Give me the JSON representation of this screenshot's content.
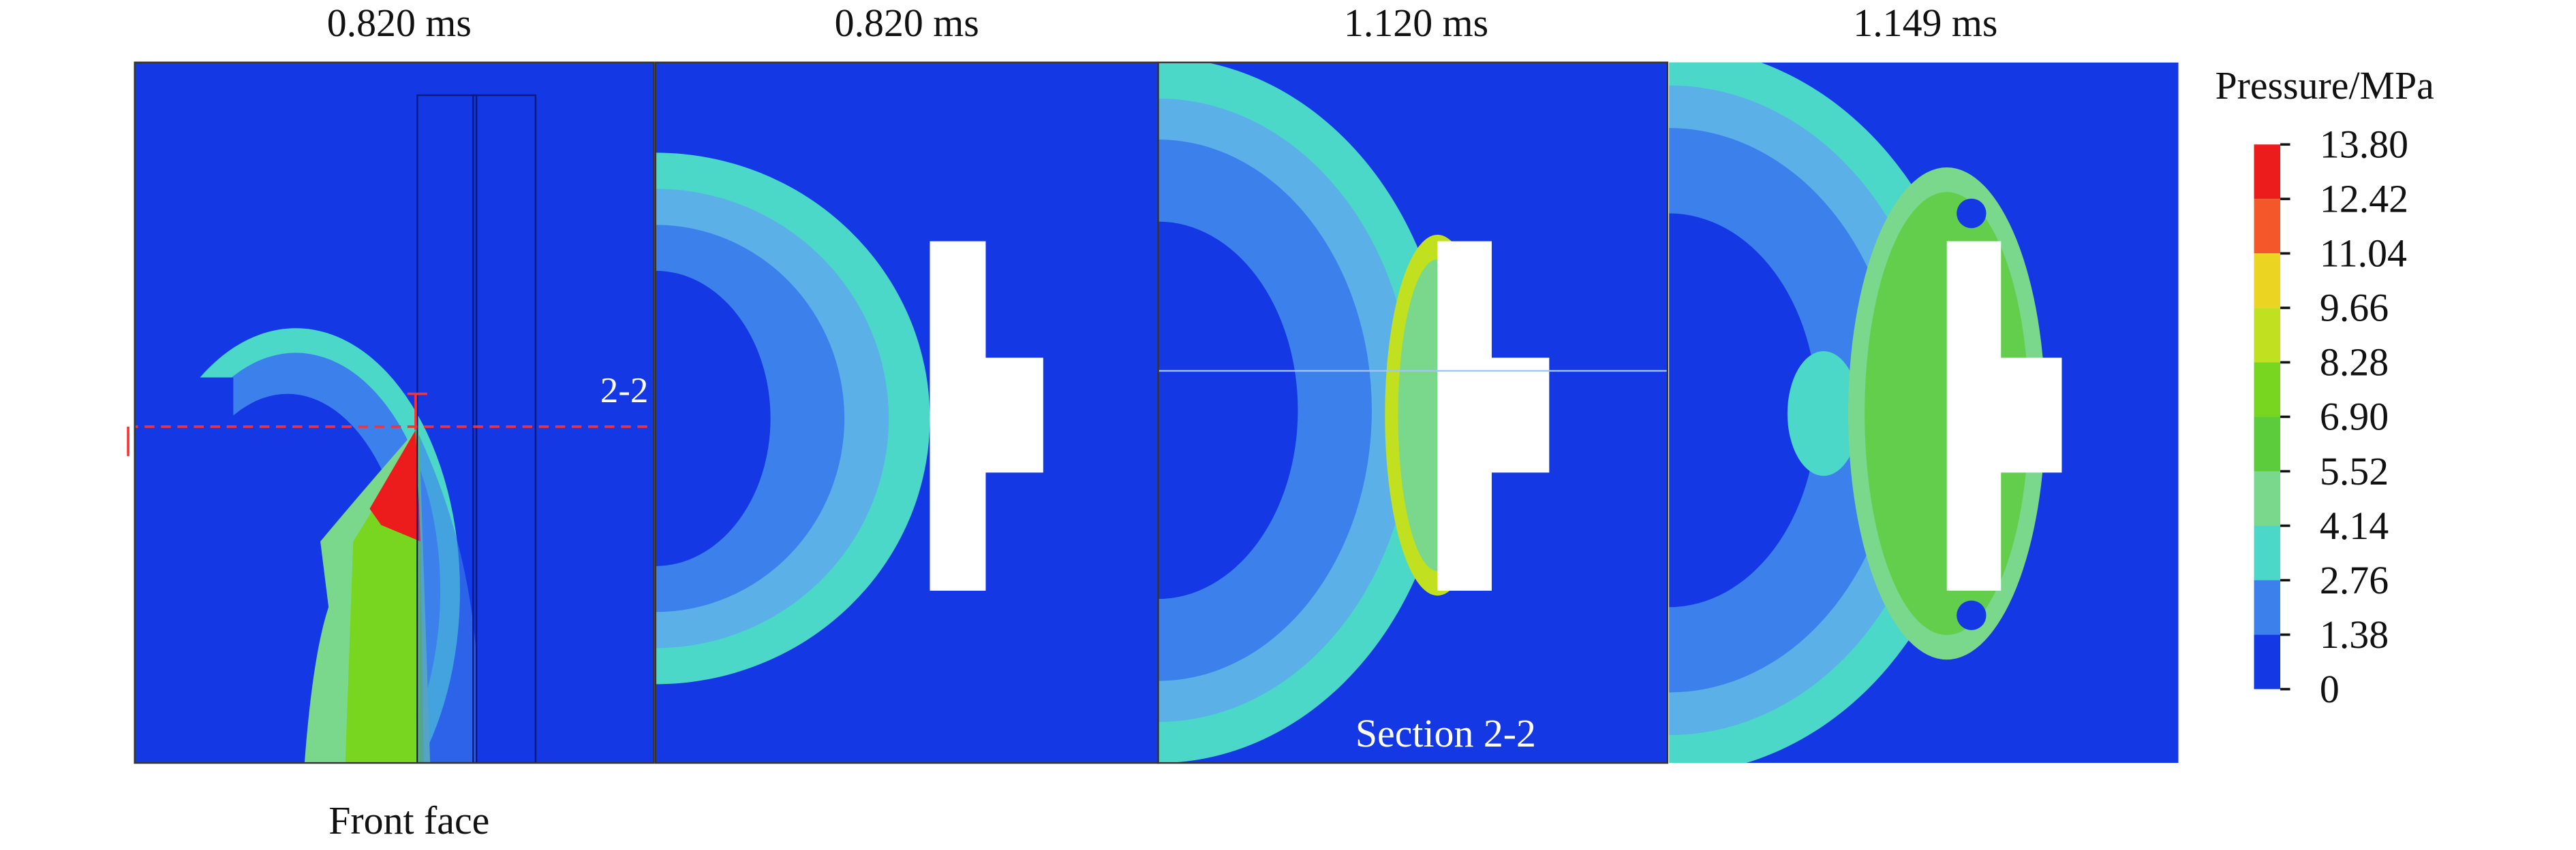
{
  "panels": [
    {
      "time": "0.820 ms",
      "caption": "Front face",
      "section_label": "2-2"
    },
    {
      "time": "0.820 ms"
    },
    {
      "time": "1.120 ms",
      "caption": "Section 2-2"
    },
    {
      "time": "1.149 ms"
    }
  ],
  "colorbar": {
    "title": "Pressure/MPa",
    "labels": [
      "13.80",
      "12.42",
      "11.04",
      "9.66",
      "8.28",
      "6.90",
      "5.52",
      "4.14",
      "2.76",
      "1.38",
      "0"
    ],
    "colors": [
      "#ec1c1c",
      "#f4582a",
      "#ecd422",
      "#c0e020",
      "#78d620",
      "#5ccc3c",
      "#7ad88c",
      "#4cd8c8",
      "#3c80ec",
      "#1438e4"
    ]
  }
}
